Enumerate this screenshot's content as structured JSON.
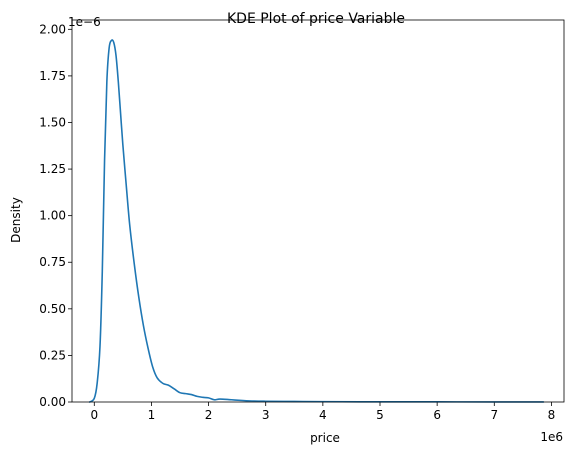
{
  "chart_data": {
    "type": "line",
    "title": "KDE Plot of price Variable",
    "xlabel": "price",
    "ylabel": "Density",
    "x_offset_label": "1e6",
    "y_offset_label": "1e−6",
    "xlim": [
      -0.39,
      8.22
    ],
    "ylim": [
      0.0,
      2.05
    ],
    "x_ticks": [
      0,
      1,
      2,
      3,
      4,
      5,
      6,
      7,
      8
    ],
    "y_ticks": [
      0.0,
      0.25,
      0.5,
      0.75,
      1.0,
      1.25,
      1.5,
      1.75,
      2.0
    ],
    "x_tick_labels": [
      "0",
      "1",
      "2",
      "3",
      "4",
      "5",
      "6",
      "7",
      "8"
    ],
    "y_tick_labels": [
      "0.00",
      "0.25",
      "0.50",
      "0.75",
      "1.00",
      "1.25",
      "1.50",
      "1.75",
      "2.00"
    ],
    "grid": false,
    "line_color": "#1f77b4",
    "series": [
      {
        "x": [
          -0.08,
          0.0,
          0.05,
          0.1,
          0.14,
          0.18,
          0.22,
          0.26,
          0.3,
          0.34,
          0.38,
          0.42,
          0.46,
          0.5,
          0.56,
          0.62,
          0.7,
          0.78,
          0.86,
          0.94,
          1.02,
          1.1,
          1.2,
          1.3,
          1.4,
          1.5,
          1.6,
          1.7,
          1.8,
          1.9,
          2.0,
          2.1,
          2.2,
          2.4,
          2.6,
          2.8,
          3.0,
          3.5,
          4.0,
          5.0,
          6.0,
          7.0,
          7.86
        ],
        "y": [
          0.0,
          0.02,
          0.1,
          0.3,
          0.7,
          1.3,
          1.72,
          1.9,
          1.94,
          1.93,
          1.86,
          1.72,
          1.55,
          1.38,
          1.16,
          0.95,
          0.74,
          0.56,
          0.41,
          0.29,
          0.19,
          0.13,
          0.1,
          0.09,
          0.07,
          0.05,
          0.045,
          0.04,
          0.03,
          0.025,
          0.022,
          0.012,
          0.016,
          0.012,
          0.008,
          0.005,
          0.004,
          0.003,
          0.002,
          0.001,
          0.0008,
          0.0005,
          0.0002
        ]
      }
    ]
  }
}
